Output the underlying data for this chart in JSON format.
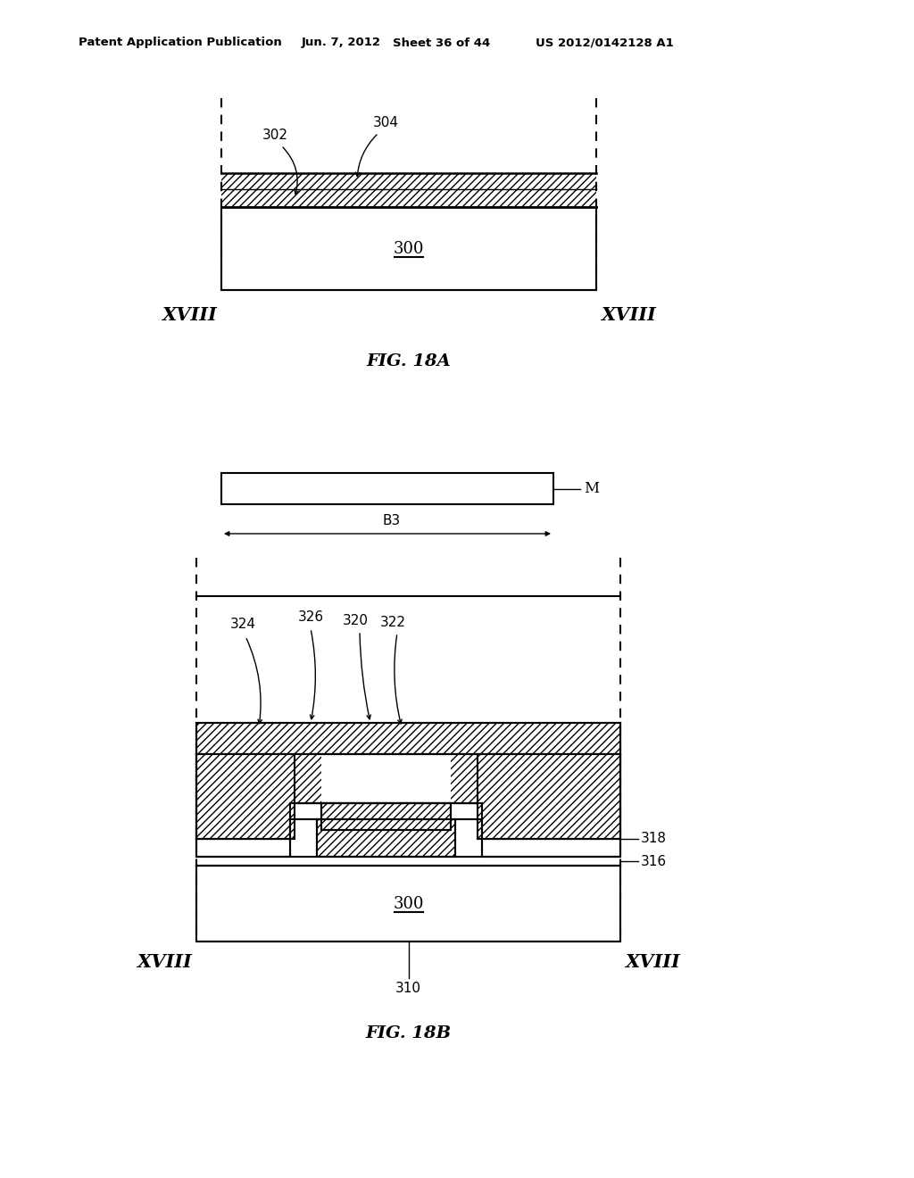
{
  "bg_color": "#ffffff",
  "header_text": "Patent Application Publication",
  "header_date": "Jun. 7, 2012",
  "header_sheet": "Sheet 36 of 44",
  "header_patent": "US 2012/0142128 A1",
  "fig18a_label": "FIG. 18A",
  "fig18b_label": "FIG. 18B",
  "label_XVIII": "XVIII",
  "label_300": "300",
  "label_302": "302",
  "label_304": "304",
  "label_310": "310",
  "label_316": "316",
  "label_318": "318",
  "label_320": "320",
  "label_322": "322",
  "label_324": "324",
  "label_326": "326",
  "label_M": "M",
  "label_B3": "B3",
  "line_color": "#000000"
}
